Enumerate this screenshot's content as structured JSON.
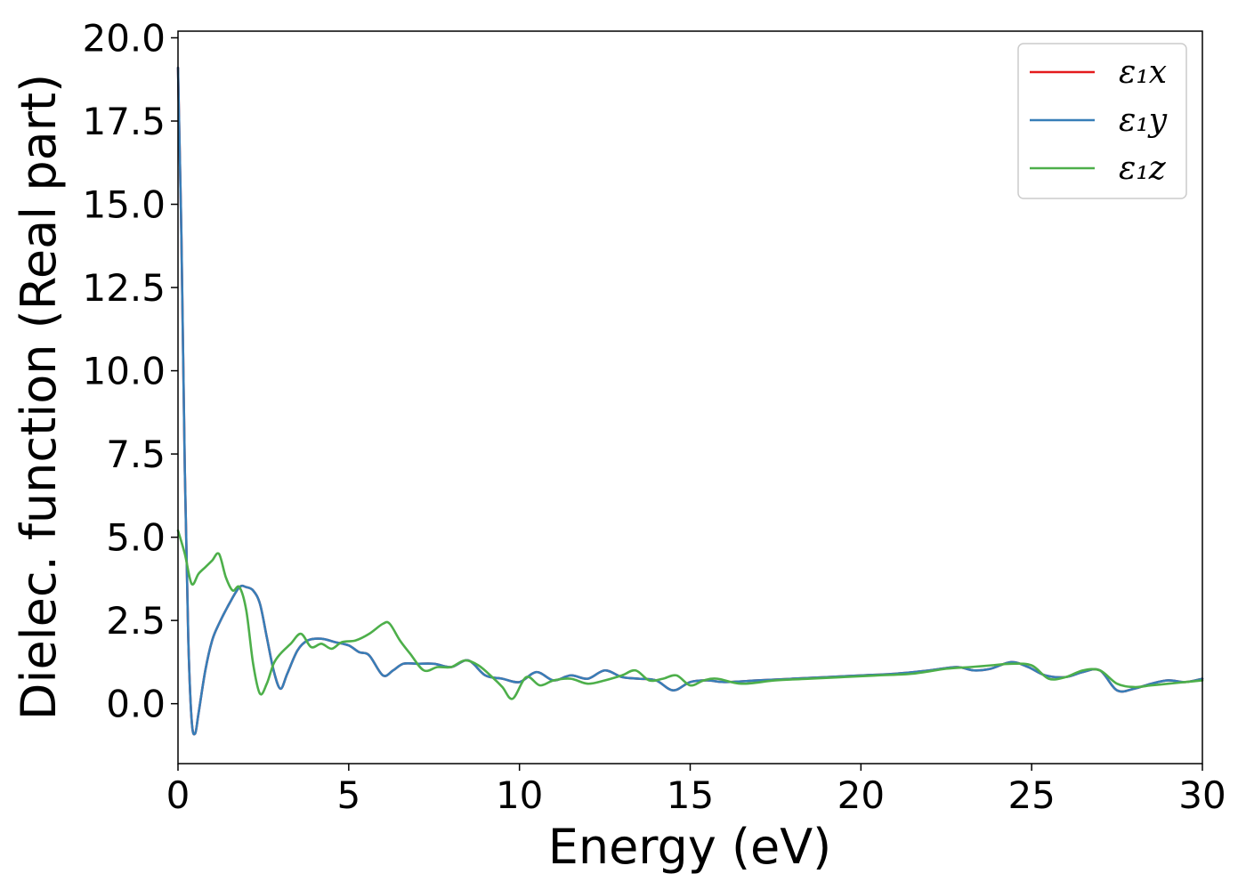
{
  "chart_data": {
    "type": "line",
    "title": "",
    "xlabel": "Energy (eV)",
    "ylabel": "Dielec. function (Real part)",
    "xlim": [
      0,
      30
    ],
    "ylim": [
      -1.8,
      20.2
    ],
    "xticks": [
      0,
      5,
      10,
      15,
      20,
      25,
      30
    ],
    "xtick_labels": [
      "0",
      "5",
      "10",
      "15",
      "20",
      "25",
      "30"
    ],
    "yticks": [
      0,
      2.5,
      5,
      7.5,
      10,
      12.5,
      15,
      17.5,
      20
    ],
    "ytick_labels": [
      "0.0",
      "2.5",
      "5.0",
      "7.5",
      "10.0",
      "12.5",
      "15.0",
      "17.5",
      "20.0"
    ],
    "grid": false,
    "legend_position": "top-right",
    "series": [
      {
        "name": "ε₁x",
        "color": "#e41a1c",
        "x": [
          0,
          0.1,
          0.2,
          0.3,
          0.4,
          0.5,
          0.6,
          0.8,
          1.0,
          1.2,
          1.5,
          1.8,
          2.0,
          2.2,
          2.4,
          2.6,
          2.8,
          3.0,
          3.2,
          3.5,
          3.8,
          4.2,
          4.6,
          5.0,
          5.3,
          5.6,
          6.0,
          6.3,
          6.6,
          7.0,
          7.5,
          8.0,
          8.5,
          9.0,
          9.5,
          10.0,
          10.5,
          11.0,
          11.5,
          12.0,
          12.5,
          13.0,
          13.5,
          14.0,
          14.5,
          15.0,
          15.5,
          16.0,
          17.0,
          18.0,
          19.0,
          20.0,
          21.0,
          22.0,
          22.8,
          23.3,
          23.8,
          24.4,
          24.9,
          25.4,
          26.0,
          26.5,
          27.0,
          27.5,
          28.0,
          28.5,
          29.0,
          29.5,
          30.0
        ],
        "values": [
          19.1,
          14.0,
          7.0,
          2.0,
          -0.5,
          -0.9,
          -0.3,
          1.0,
          1.9,
          2.4,
          3.0,
          3.5,
          3.5,
          3.4,
          3.0,
          2.0,
          1.0,
          0.45,
          0.9,
          1.6,
          1.9,
          1.95,
          1.85,
          1.75,
          1.55,
          1.45,
          0.85,
          1.0,
          1.2,
          1.2,
          1.2,
          1.1,
          1.3,
          0.85,
          0.75,
          0.65,
          0.95,
          0.7,
          0.85,
          0.75,
          1.0,
          0.8,
          0.75,
          0.7,
          0.4,
          0.65,
          0.7,
          0.65,
          0.7,
          0.75,
          0.8,
          0.85,
          0.9,
          1.0,
          1.1,
          1.0,
          1.05,
          1.25,
          1.1,
          0.85,
          0.8,
          0.95,
          1.0,
          0.4,
          0.45,
          0.6,
          0.7,
          0.65,
          0.75
        ]
      },
      {
        "name": "ε₁y",
        "color": "#377eb8",
        "x": [
          0,
          0.1,
          0.2,
          0.3,
          0.4,
          0.5,
          0.6,
          0.8,
          1.0,
          1.2,
          1.5,
          1.8,
          2.0,
          2.2,
          2.4,
          2.6,
          2.8,
          3.0,
          3.2,
          3.5,
          3.8,
          4.2,
          4.6,
          5.0,
          5.3,
          5.6,
          6.0,
          6.3,
          6.6,
          7.0,
          7.5,
          8.0,
          8.5,
          9.0,
          9.5,
          10.0,
          10.5,
          11.0,
          11.5,
          12.0,
          12.5,
          13.0,
          13.5,
          14.0,
          14.5,
          15.0,
          15.5,
          16.0,
          17.0,
          18.0,
          19.0,
          20.0,
          21.0,
          22.0,
          22.8,
          23.3,
          23.8,
          24.4,
          24.9,
          25.4,
          26.0,
          26.5,
          27.0,
          27.5,
          28.0,
          28.5,
          29.0,
          29.5,
          30.0
        ],
        "values": [
          19.1,
          14.0,
          7.0,
          2.0,
          -0.5,
          -0.9,
          -0.3,
          1.0,
          1.9,
          2.4,
          3.0,
          3.5,
          3.5,
          3.4,
          3.0,
          2.0,
          1.0,
          0.45,
          0.9,
          1.6,
          1.9,
          1.95,
          1.85,
          1.75,
          1.55,
          1.45,
          0.85,
          1.0,
          1.2,
          1.2,
          1.2,
          1.1,
          1.3,
          0.85,
          0.75,
          0.65,
          0.95,
          0.7,
          0.85,
          0.75,
          1.0,
          0.8,
          0.75,
          0.7,
          0.4,
          0.65,
          0.7,
          0.65,
          0.7,
          0.75,
          0.8,
          0.85,
          0.9,
          1.0,
          1.1,
          1.0,
          1.05,
          1.25,
          1.1,
          0.85,
          0.8,
          0.95,
          1.0,
          0.4,
          0.45,
          0.6,
          0.7,
          0.65,
          0.75
        ]
      },
      {
        "name": "ε₁z",
        "color": "#4daf4a",
        "x": [
          0,
          0.2,
          0.4,
          0.6,
          0.8,
          1.0,
          1.2,
          1.4,
          1.6,
          1.8,
          2.0,
          2.2,
          2.4,
          2.6,
          2.8,
          3.0,
          3.3,
          3.6,
          3.9,
          4.2,
          4.5,
          4.8,
          5.2,
          5.6,
          6.0,
          6.2,
          6.5,
          6.8,
          7.2,
          7.6,
          8.0,
          8.4,
          8.8,
          9.2,
          9.5,
          9.8,
          10.2,
          10.6,
          11.0,
          11.5,
          12.0,
          12.5,
          13.0,
          13.4,
          13.8,
          14.2,
          14.6,
          15.0,
          15.4,
          15.8,
          16.5,
          17.5,
          18.5,
          19.5,
          20.5,
          21.5,
          22.5,
          23.2,
          23.8,
          24.4,
          25.0,
          25.5,
          26.0,
          26.5,
          27.0,
          27.5,
          28.0,
          28.5,
          29.0,
          29.5,
          30.0
        ],
        "values": [
          5.2,
          4.5,
          3.6,
          3.9,
          4.1,
          4.3,
          4.5,
          3.8,
          3.4,
          3.5,
          2.8,
          1.2,
          0.3,
          0.6,
          1.2,
          1.5,
          1.8,
          2.1,
          1.7,
          1.8,
          1.65,
          1.85,
          1.9,
          2.1,
          2.4,
          2.4,
          1.9,
          1.5,
          1.0,
          1.1,
          1.1,
          1.3,
          1.15,
          0.8,
          0.5,
          0.15,
          0.8,
          0.55,
          0.7,
          0.75,
          0.6,
          0.7,
          0.85,
          1.0,
          0.7,
          0.75,
          0.85,
          0.55,
          0.7,
          0.75,
          0.6,
          0.7,
          0.75,
          0.8,
          0.85,
          0.9,
          1.05,
          1.1,
          1.15,
          1.2,
          1.15,
          0.75,
          0.8,
          1.0,
          1.0,
          0.6,
          0.5,
          0.55,
          0.6,
          0.65,
          0.7
        ]
      }
    ]
  }
}
